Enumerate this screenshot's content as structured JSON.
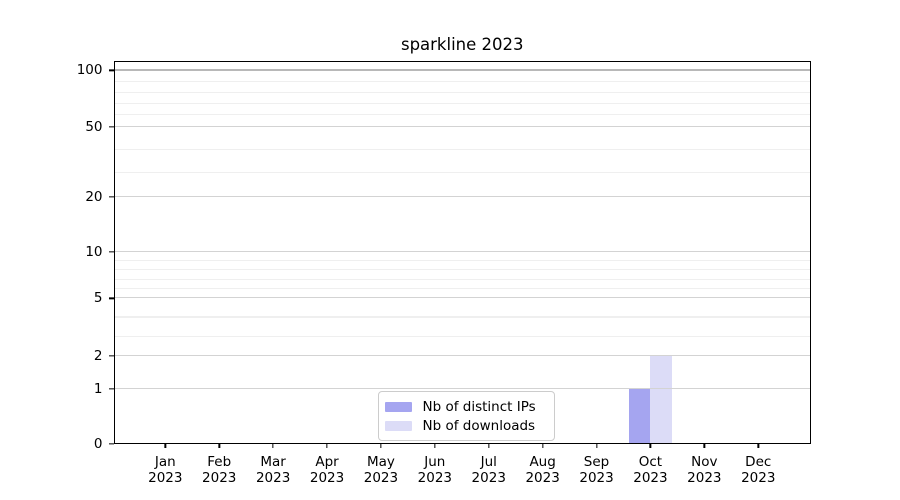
{
  "title": "sparkline 2023",
  "colors": {
    "background": "#ffffff",
    "spine": "#000000",
    "text": "#000000",
    "grid_major": "#d3d3d3",
    "grid_top": "#b8b8b8",
    "grid_minor": "#efefef",
    "legend_border": "#cccccc",
    "series_distinct_ips": "#a5a5f0",
    "series_downloads": "#dcdcf7"
  },
  "chart_data": {
    "type": "bar",
    "title": "sparkline 2023",
    "months": [
      "Jan",
      "Feb",
      "Mar",
      "Apr",
      "May",
      "Jun",
      "Jul",
      "Aug",
      "Sep",
      "Oct",
      "Nov",
      "Dec"
    ],
    "year": "2023",
    "categories": [
      "Jan 2023",
      "Feb 2023",
      "Mar 2023",
      "Apr 2023",
      "May 2023",
      "Jun 2023",
      "Jul 2023",
      "Aug 2023",
      "Sep 2023",
      "Oct 2023",
      "Nov 2023",
      "Dec 2023"
    ],
    "series": [
      {
        "name": "Nb of distinct IPs",
        "color": "#a5a5f0",
        "values": [
          0,
          0,
          0,
          0,
          0,
          0,
          0,
          0,
          0,
          1,
          0,
          0
        ]
      },
      {
        "name": "Nb of downloads",
        "color": "#dcdcf7",
        "values": [
          0,
          0,
          0,
          0,
          0,
          0,
          0,
          0,
          0,
          2,
          0,
          0
        ]
      }
    ],
    "xlabel": "",
    "ylabel": "",
    "y_axis": {
      "scale": "symlog",
      "ticks": [
        0,
        1,
        2,
        5,
        10,
        20,
        50,
        100
      ],
      "range": [
        0,
        112
      ]
    },
    "grid": {
      "horizontal_major": true,
      "horizontal_minor": true,
      "vertical": false
    },
    "legend_position": "lower center-left inside axes",
    "layout": {
      "y_tick_fractions": {
        "0": 0,
        "1": 0.1425,
        "2": 0.2288,
        "5": 0.3796,
        "10": 0.5014,
        "20": 0.6452,
        "50": 0.8282,
        "100": 0.9752
      },
      "y_minor_fractions": {
        "3": 0.2791,
        "4": 0.3293,
        "6": 0.404,
        "7": 0.4283,
        "8": 0.4527,
        "9": 0.4771,
        "30": 0.7062,
        "40": 0.7672,
        "60": 0.8576,
        "70": 0.887,
        "80": 0.9164,
        "90": 0.9458
      },
      "x_first_frac": 0.0743,
      "x_step_frac": 0.07728,
      "bar_width_frac": 0.0308
    }
  }
}
